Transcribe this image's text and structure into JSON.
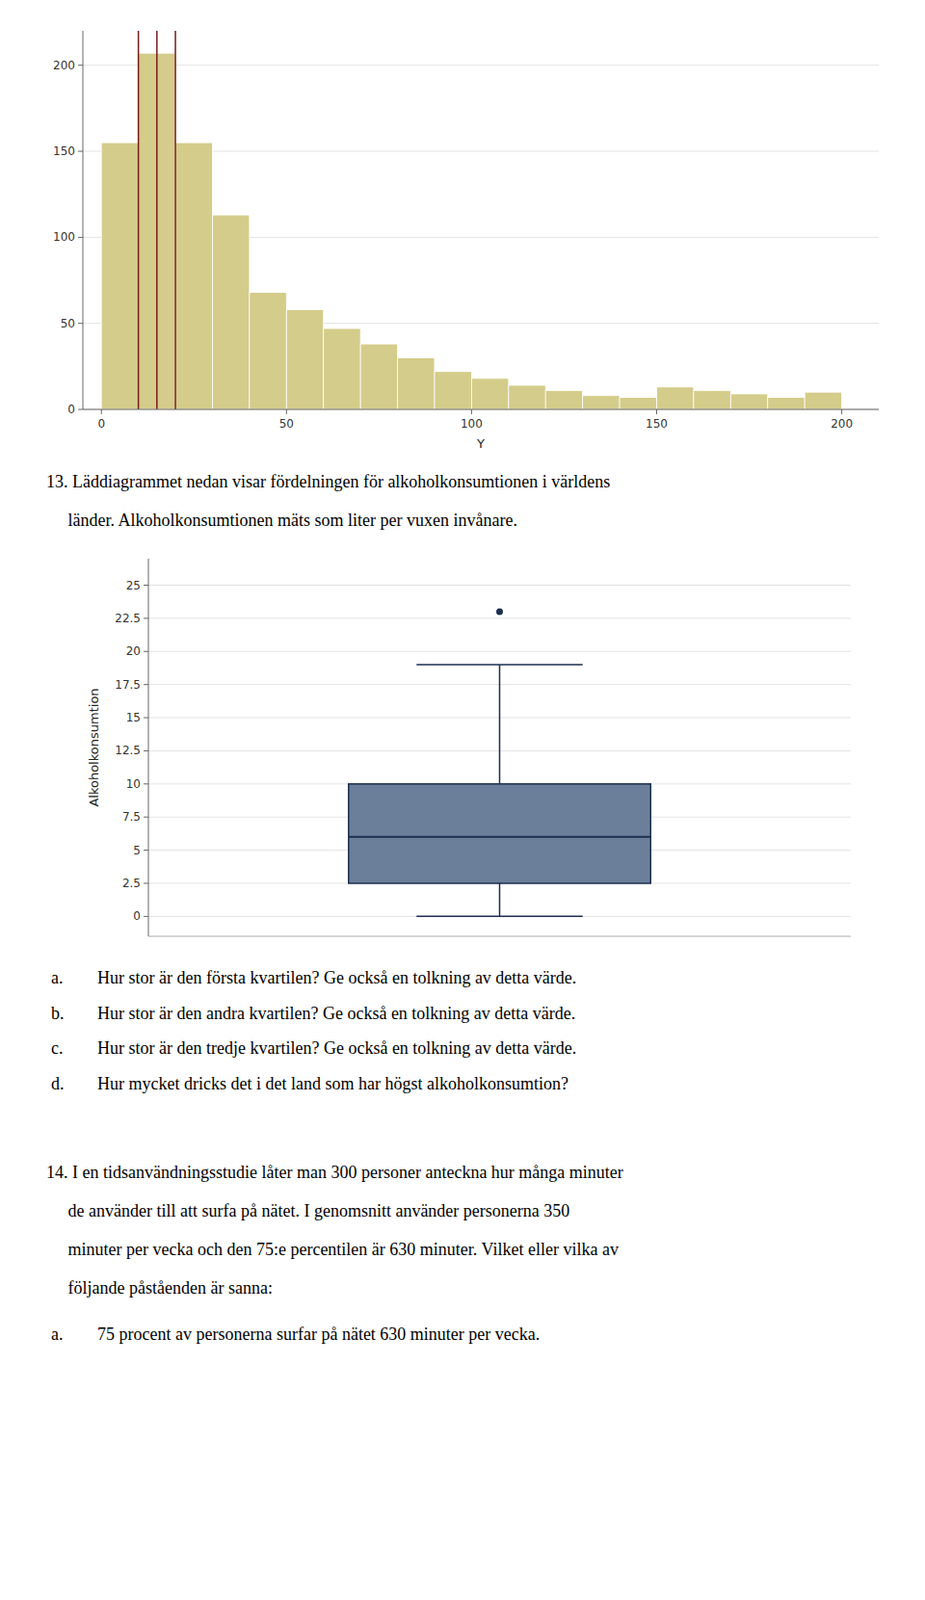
{
  "chart_data": [
    {
      "type": "histogram",
      "bins": [
        0,
        10,
        20,
        30,
        40,
        50,
        60,
        70,
        80,
        90,
        100,
        110,
        120,
        130,
        140,
        150,
        160,
        170,
        180,
        190,
        200
      ],
      "values": [
        155,
        207,
        155,
        113,
        68,
        58,
        47,
        38,
        30,
        22,
        18,
        14,
        11,
        8,
        7,
        13,
        11,
        9,
        7,
        10
      ],
      "color": "#d4cc8a",
      "reference_lines": {
        "color": "#7a1a1a",
        "values": [
          10,
          15,
          20
        ]
      },
      "x_label": "Y",
      "xlim": [
        -5,
        210
      ],
      "ylim": [
        0,
        220
      ],
      "xticks": [
        0,
        50,
        100,
        150,
        200
      ],
      "yticks": [
        0,
        50,
        100,
        150,
        200
      ],
      "grid": true
    },
    {
      "type": "box",
      "q1": 2.5,
      "median": 6.0,
      "q3": 10.0,
      "whisker_low": 0.0,
      "whisker_high": 19.0,
      "outliers": [
        23.0
      ],
      "color": "#6b7f9a",
      "y_label": "Alkoholkonsumtion",
      "ylim": [
        -1.5,
        27
      ],
      "yticks": [
        0,
        2.5,
        5,
        7.5,
        10,
        12.5,
        15,
        17.5,
        20,
        22.5,
        25
      ],
      "grid": true,
      "tick_labels": "y"
    }
  ],
  "annotations": [
    [
      "13. Läddiagrammet nedan visar fördelningen för alkoholkonsumtionen i världens",
      "     länder. Alkoholkonsumtionen mäts som liter per vuxen invånare."
    ],
    [
      {
        "label": "a.",
        "text": "Hur stor är den första kvartilen? Ge också en tolkning av detta värde."
      },
      {
        "label": "b.",
        "text": "Hur stor är den andra kvartilen? Ge också en tolkning av detta värde."
      },
      {
        "label": "c.",
        "text": "Hur stor är den tredje kvartilen? Ge också en tolkning av detta värde."
      },
      {
        "label": "d.",
        "text": "Hur mycket dricks det i det land som har högst alkoholkonsumtion?"
      }
    ],
    [
      "14. I en tidsanvändningsstudie låter man 300 personer anteckna hur många minuter",
      "     de använder till att surfa på nätet. I genomsnitt använder personerna 350",
      "     minuter per vecka och den 75:e percentilen är 630 minuter. Vilket eller vilka av",
      "     följande påståenden är sanna:"
    ],
    [
      {
        "label": "a.",
        "text": "75 procent av personerna surfar på nätet 630 minuter per vecka."
      }
    ]
  ]
}
